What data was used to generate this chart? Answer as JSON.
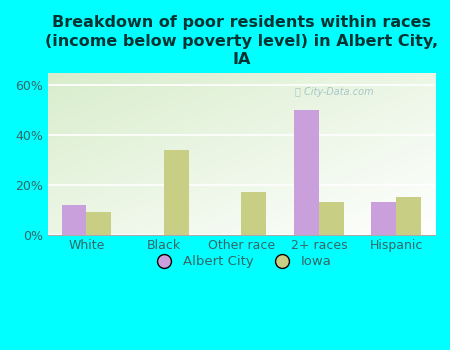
{
  "title": "Breakdown of poor residents within races\n(income below poverty level) in Albert City,\nIA",
  "categories": [
    "White",
    "Black",
    "Other race",
    "2+ races",
    "Hispanic"
  ],
  "albert_city": [
    12,
    0,
    0,
    50,
    13
  ],
  "iowa": [
    9,
    34,
    17,
    13,
    15
  ],
  "albert_city_color": "#c9a0dc",
  "iowa_color": "#c8cf84",
  "background_color": "#00ffff",
  "ylim": [
    0,
    65
  ],
  "yticks": [
    0,
    20,
    40,
    60
  ],
  "ytick_labels": [
    "0%",
    "20%",
    "40%",
    "60%"
  ],
  "bar_width": 0.32,
  "title_fontsize": 11.5,
  "tick_fontsize": 9,
  "legend_fontsize": 9.5,
  "watermark": "City-Data.com",
  "title_color": "#003333",
  "tick_color": "#336666"
}
